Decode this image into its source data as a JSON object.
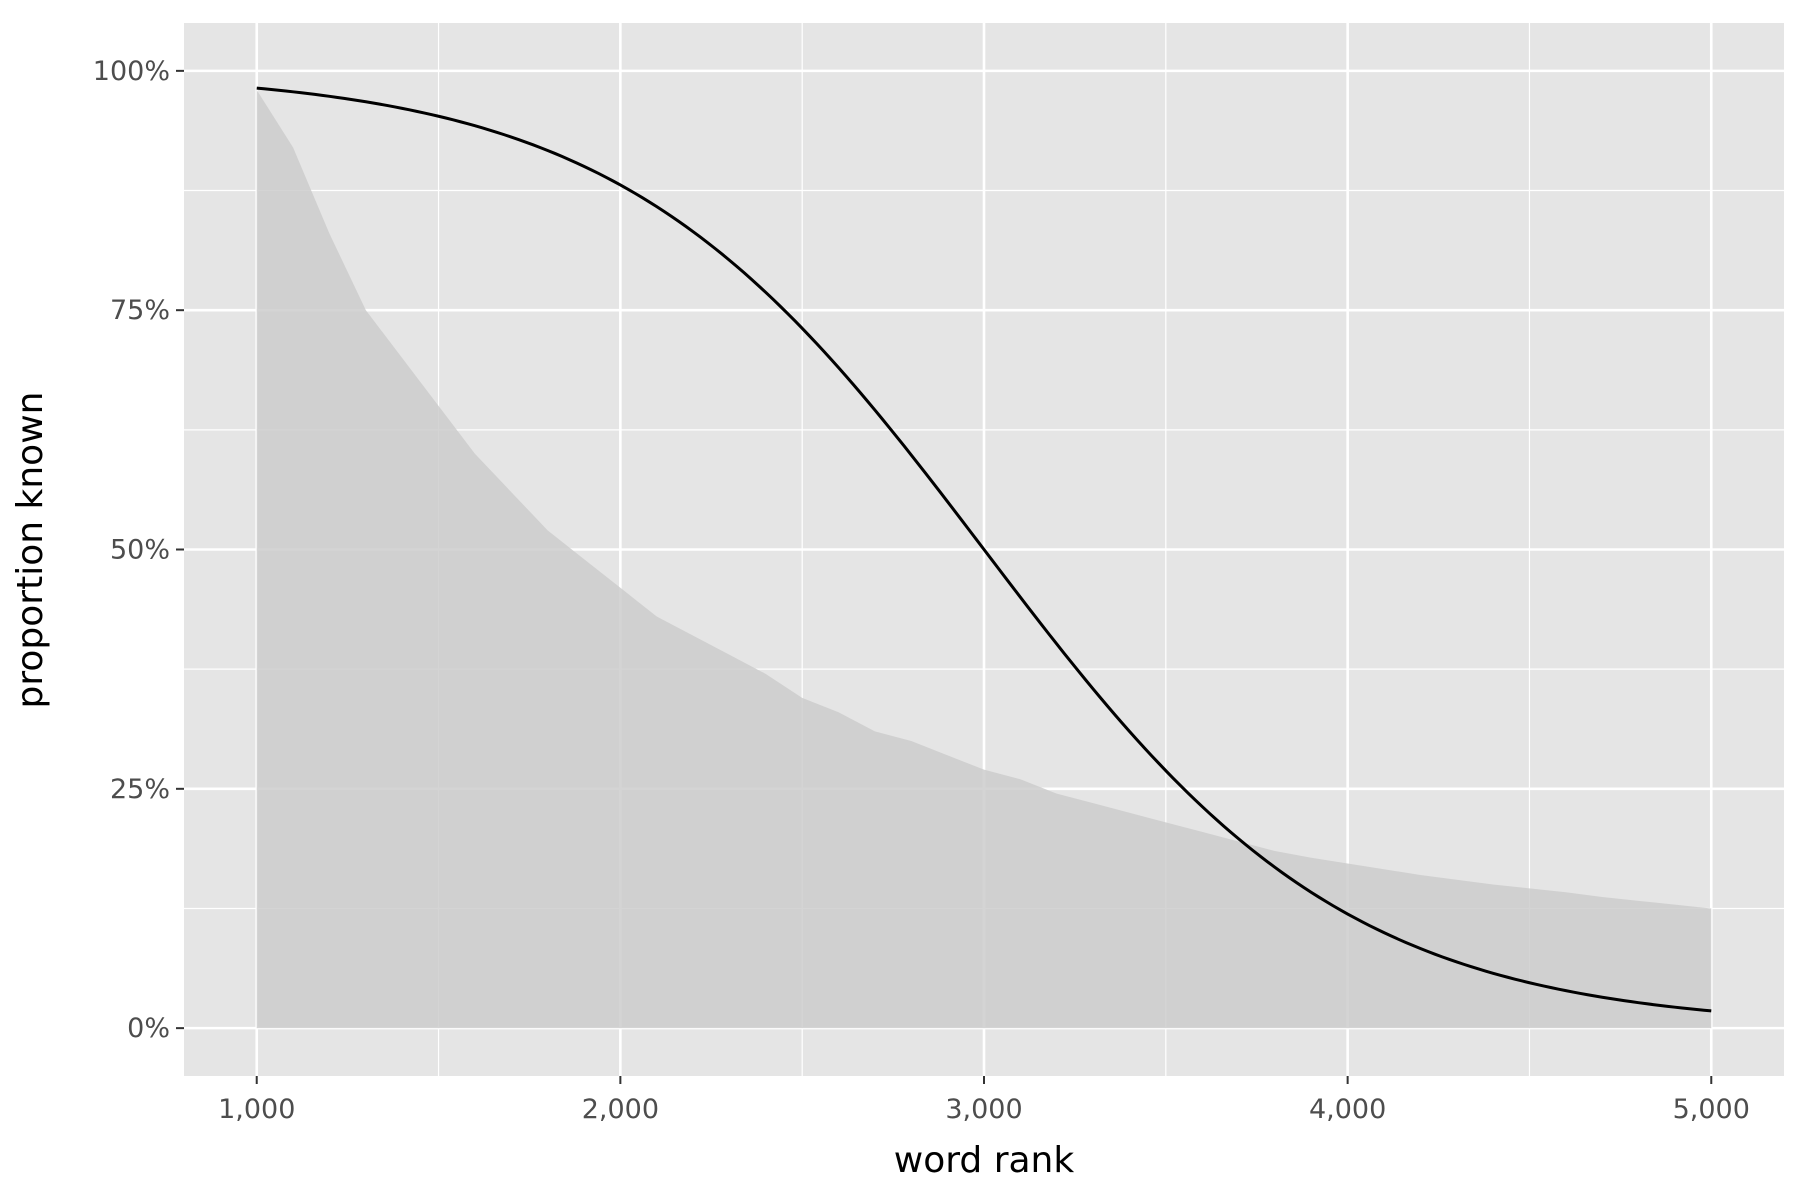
{
  "chart_data": {
    "type": "area",
    "title": "",
    "xlabel": "word rank",
    "ylabel": "proportion known",
    "xlim": [
      800,
      5200
    ],
    "ylim": [
      -0.05,
      1.05
    ],
    "grid": true,
    "legend": "none",
    "x_ticks": [
      1000,
      2000,
      3000,
      4000,
      5000
    ],
    "x_tick_labels": [
      "1,000",
      "2,000",
      "3,000",
      "4,000",
      "5,000"
    ],
    "y_ticks": [
      0,
      0.25,
      0.5,
      0.75,
      1.0
    ],
    "y_tick_labels": [
      "0%",
      "25%",
      "50%",
      "75%",
      "100%"
    ],
    "colors": {
      "panel": "#e5e5e5",
      "grid": "#ffffff",
      "area": "#cccccc",
      "line": "#000000"
    },
    "series": [
      {
        "kind": "area",
        "x": [
          1000,
          1100,
          1200,
          1300,
          1400,
          1500,
          1600,
          1700,
          1800,
          1900,
          2000,
          2100,
          2200,
          2300,
          2400,
          2500,
          2600,
          2700,
          2800,
          2900,
          3000,
          3100,
          3200,
          3300,
          3400,
          3500,
          3600,
          3700,
          3800,
          3900,
          4000,
          4100,
          4200,
          4300,
          4400,
          4500,
          4600,
          4700,
          4800,
          4900,
          5000
        ],
        "values": [
          0.98,
          0.92,
          0.83,
          0.75,
          0.7,
          0.65,
          0.6,
          0.56,
          0.52,
          0.49,
          0.46,
          0.43,
          0.41,
          0.39,
          0.37,
          0.345,
          0.33,
          0.31,
          0.3,
          0.285,
          0.27,
          0.26,
          0.245,
          0.235,
          0.225,
          0.215,
          0.205,
          0.195,
          0.185,
          0.178,
          0.172,
          0.166,
          0.16,
          0.155,
          0.15,
          0.146,
          0.142,
          0.137,
          0.133,
          0.129,
          0.125
        ]
      },
      {
        "kind": "line",
        "x": [
          1000,
          1100,
          1200,
          1300,
          1400,
          1500,
          1600,
          1700,
          1800,
          1900,
          2000,
          2100,
          2200,
          2300,
          2400,
          2500,
          2600,
          2700,
          2800,
          2900,
          3000,
          3100,
          3200,
          3300,
          3400,
          3500,
          3600,
          3700,
          3800,
          3900,
          4000,
          4100,
          4200,
          4300,
          4400,
          4500,
          4600,
          4700,
          4800,
          4900,
          5000
        ],
        "values": [
          0.982,
          0.978,
          0.973,
          0.966,
          0.958,
          0.947,
          0.935,
          0.92,
          0.902,
          0.881,
          0.881,
          0.854,
          0.823,
          0.786,
          0.743,
          0.693,
          0.637,
          0.576,
          0.51,
          0.442,
          0.5,
          0.44,
          0.382,
          0.326,
          0.274,
          0.227,
          0.186,
          0.15,
          0.12,
          0.096,
          0.119,
          0.097,
          0.079,
          0.064,
          0.052,
          0.042,
          0.034,
          0.028,
          0.023,
          0.02,
          0.018
        ]
      }
    ]
  }
}
